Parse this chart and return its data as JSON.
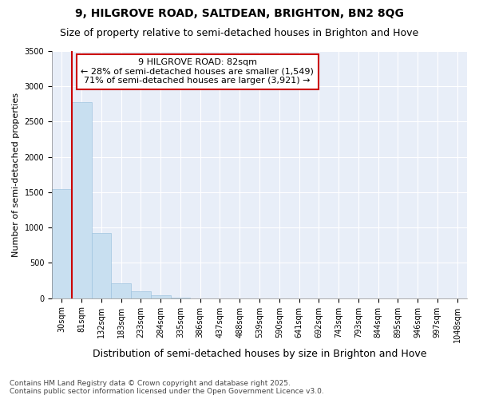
{
  "title1": "9, HILGROVE ROAD, SALTDEAN, BRIGHTON, BN2 8QG",
  "title2": "Size of property relative to semi-detached houses in Brighton and Hove",
  "xlabel": "Distribution of semi-detached houses by size in Brighton and Hove",
  "ylabel": "Number of semi-detached properties",
  "categories": [
    "30sqm",
    "81sqm",
    "132sqm",
    "183sqm",
    "233sqm",
    "284sqm",
    "335sqm",
    "386sqm",
    "437sqm",
    "488sqm",
    "539sqm",
    "590sqm",
    "641sqm",
    "692sqm",
    "743sqm",
    "793sqm",
    "844sqm",
    "895sqm",
    "946sqm",
    "997sqm",
    "1048sqm"
  ],
  "values": [
    1540,
    2780,
    920,
    215,
    100,
    40,
    5,
    0,
    0,
    0,
    0,
    0,
    0,
    0,
    0,
    0,
    0,
    0,
    0,
    0,
    0
  ],
  "bar_color": "#c8dff0",
  "bar_edge_color": "#a0c4e0",
  "annotation_title": "9 HILGROVE ROAD: 82sqm",
  "annotation_line1": "← 28% of semi-detached houses are smaller (1,549)",
  "annotation_line2": "71% of semi-detached houses are larger (3,921) →",
  "annotation_box_color": "#ffffff",
  "annotation_box_edge": "#cc0000",
  "vline_color": "#cc0000",
  "ylim": [
    0,
    3500
  ],
  "yticks": [
    0,
    500,
    1000,
    1500,
    2000,
    2500,
    3000,
    3500
  ],
  "footer1": "Contains HM Land Registry data © Crown copyright and database right 2025.",
  "footer2": "Contains public sector information licensed under the Open Government Licence v3.0.",
  "bg_color": "#ffffff",
  "plot_bg_color": "#e8eef8",
  "title1_fontsize": 10,
  "title2_fontsize": 9,
  "ann_fontsize": 8,
  "tick_fontsize": 7,
  "ylabel_fontsize": 8,
  "xlabel_fontsize": 9,
  "footer_fontsize": 6.5
}
